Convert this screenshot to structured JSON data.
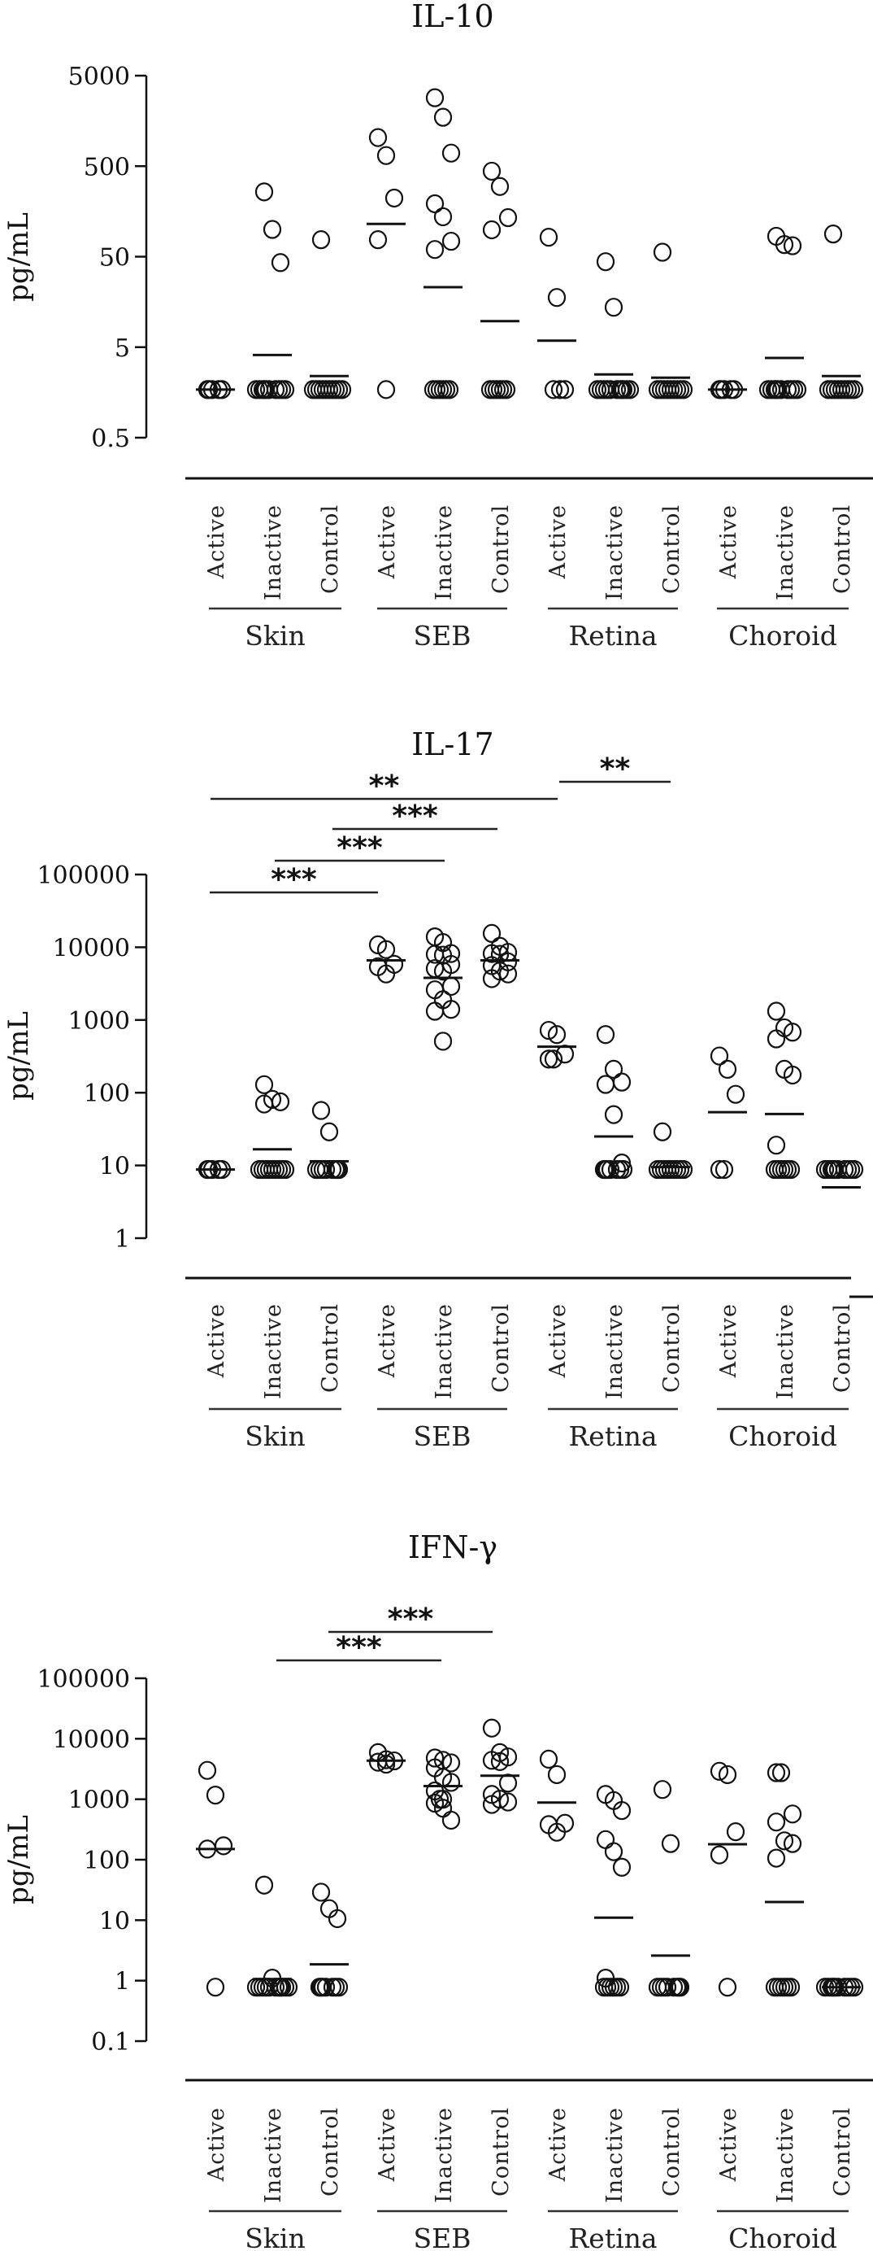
{
  "chart_data": [
    {
      "type": "scatter",
      "title": "IL-10",
      "ylabel": "pg/mL",
      "yscale": "log",
      "ylim": [
        0.5,
        5000
      ],
      "yticks": [
        5000,
        500,
        50,
        5,
        0.5
      ],
      "ytick_labels": [
        "5000",
        "500",
        "50",
        "5",
        "0.5"
      ],
      "groups": [
        "Skin",
        "SEB",
        "Retina",
        "Choroid"
      ],
      "conditions": [
        "Active",
        "Inactive",
        "Control"
      ],
      "series": [
        {
          "group": "Skin",
          "condition": "Active",
          "values": [
            1.7,
            1.7,
            1.7,
            1.7,
            1.7
          ],
          "mean": 1.7
        },
        {
          "group": "Skin",
          "condition": "Inactive",
          "values": [
            260,
            100,
            43,
            1.7,
            1.7,
            1.7,
            1.7,
            1.7,
            1.7,
            1.7,
            1.7,
            1.7,
            1.7
          ],
          "mean": 4.1
        },
        {
          "group": "Skin",
          "condition": "Control",
          "values": [
            77,
            1.7,
            1.7,
            1.7,
            1.7,
            1.7,
            1.7,
            1.7,
            1.7,
            1.7,
            1.7
          ],
          "mean": 2.4
        },
        {
          "group": "SEB",
          "condition": "Active",
          "values": [
            1035,
            655,
            222,
            77,
            1.7
          ],
          "mean": 115
        },
        {
          "group": "SEB",
          "condition": "Inactive",
          "values": [
            2850,
            1735,
            697,
            192,
            138,
            74,
            60,
            1.7,
            1.7,
            1.7,
            1.7,
            1.7,
            1.7
          ],
          "mean": 23
        },
        {
          "group": "SEB",
          "condition": "Control",
          "values": [
            440,
            298,
            135,
            99,
            1.7,
            1.7,
            1.7,
            1.7,
            1.7,
            1.7
          ],
          "mean": 9.7
        },
        {
          "group": "Retina",
          "condition": "Active",
          "values": [
            82,
            17.7,
            1.7,
            1.7,
            1.7
          ],
          "mean": 5.9
        },
        {
          "group": "Retina",
          "condition": "Inactive",
          "values": [
            44,
            13.8,
            1.7,
            1.7,
            1.7,
            1.7,
            1.7,
            1.7,
            1.7,
            1.7,
            1.7,
            1.7,
            1.7
          ],
          "mean": 2.5
        },
        {
          "group": "Retina",
          "condition": "Control",
          "values": [
            56,
            1.7,
            1.7,
            1.7,
            1.7,
            1.7,
            1.7,
            1.7,
            1.7,
            1.7
          ],
          "mean": 2.3
        },
        {
          "group": "Choroid",
          "condition": "Active",
          "values": [
            1.7,
            1.7,
            1.7,
            1.7,
            1.7
          ],
          "mean": 1.7
        },
        {
          "group": "Choroid",
          "condition": "Inactive",
          "values": [
            84,
            68,
            66,
            1.7,
            1.7,
            1.7,
            1.7,
            1.7,
            1.7,
            1.7,
            1.7,
            1.7,
            1.7
          ],
          "mean": 3.8
        },
        {
          "group": "Choroid",
          "condition": "Control",
          "values": [
            89,
            1.7,
            1.7,
            1.7,
            1.7,
            1.7,
            1.7,
            1.7,
            1.7,
            1.7
          ],
          "mean": 2.4
        }
      ],
      "significance": []
    },
    {
      "type": "scatter",
      "title": "IL-17",
      "ylabel": "pg/mL",
      "yscale": "log",
      "ylim": [
        1,
        100000
      ],
      "yticks": [
        100000,
        10000,
        1000,
        100,
        10,
        1
      ],
      "ytick_labels": [
        "100000",
        "10000",
        "1000",
        "100",
        "10",
        "1"
      ],
      "groups": [
        "Skin",
        "SEB",
        "Retina",
        "Choroid"
      ],
      "conditions": [
        "Active",
        "Inactive",
        "Control"
      ],
      "series": [
        {
          "group": "Skin",
          "condition": "Active",
          "values": [
            8.8,
            8.8,
            8.8,
            8.8,
            8.8
          ],
          "mean": 8.8
        },
        {
          "group": "Skin",
          "condition": "Inactive",
          "values": [
            129,
            81,
            75,
            70,
            8.8,
            8.8,
            8.8,
            8.8,
            8.8,
            8.8,
            8.8,
            8.8,
            8.8
          ],
          "mean": 16.7
        },
        {
          "group": "Skin",
          "condition": "Control",
          "values": [
            57,
            29,
            8.8,
            8.8,
            8.8,
            8.8,
            8.8,
            8.8,
            8.8,
            8.8
          ],
          "mean": 11.4
        },
        {
          "group": "SEB",
          "condition": "Active",
          "values": [
            10800,
            9300,
            5830,
            5400,
            4300
          ],
          "mean": 6600
        },
        {
          "group": "SEB",
          "condition": "Inactive",
          "values": [
            13900,
            11600,
            8200,
            8000,
            7800,
            5800,
            5100,
            4700,
            2900,
            2600,
            1900,
            1400,
            1320,
            510
          ],
          "mean": 3800
        },
        {
          "group": "SEB",
          "condition": "Control",
          "values": [
            15500,
            10300,
            8500,
            8200,
            8000,
            6300,
            5600,
            4700,
            4300,
            3700
          ],
          "mean": 6600
        },
        {
          "group": "Retina",
          "condition": "Active",
          "values": [
            720,
            630,
            340,
            290,
            290
          ],
          "mean": 430
        },
        {
          "group": "Retina",
          "condition": "Inactive",
          "values": [
            630,
            210,
            140,
            130,
            50,
            10.8,
            8.8,
            8.8,
            8.8,
            8.8,
            8.8,
            8.8,
            8.8
          ],
          "mean": 25
        },
        {
          "group": "Retina",
          "condition": "Control",
          "values": [
            29,
            8.8,
            8.8,
            8.8,
            8.8,
            8.8,
            8.8,
            8.8,
            8.8,
            8.8
          ],
          "mean": 9.5
        },
        {
          "group": "Choroid",
          "condition": "Active",
          "values": [
            320,
            210,
            95,
            8.8,
            8.8
          ],
          "mean": 54
        },
        {
          "group": "Choroid",
          "condition": "Inactive",
          "values": [
            1320,
            780,
            680,
            550,
            210,
            175,
            19,
            8.8,
            8.8,
            8.8,
            8.8,
            8.8,
            8.8
          ],
          "mean": 51
        },
        {
          "group": "Choroid",
          "condition": "Control",
          "values": [
            8.8,
            8.8,
            8.8,
            8.8,
            8.8,
            8.8,
            8.8,
            8.8,
            8.8,
            8.8
          ],
          "mean": 5.0
        }
      ],
      "significance": [
        {
          "from": "Skin Active",
          "to": "SEB Active",
          "label": "***"
        },
        {
          "from": "Skin Inactive",
          "to": "SEB Inactive",
          "label": "***"
        },
        {
          "from": "Skin Control",
          "to": "SEB Control",
          "label": "***"
        },
        {
          "from": "Skin Active",
          "to": "Retina Active",
          "label": "**"
        },
        {
          "from": "Retina Active",
          "to": "Retina Inactive",
          "label": "**"
        }
      ]
    },
    {
      "type": "scatter",
      "title": "IFN-γ",
      "ylabel": "pg/mL",
      "yscale": "log",
      "ylim": [
        0.1,
        100000
      ],
      "yticks": [
        100000,
        10000,
        1000,
        100,
        10,
        1,
        0.1
      ],
      "ytick_labels": [
        "100000",
        "10000",
        "1000",
        "100",
        "10",
        "1",
        "0.1"
      ],
      "groups": [
        "Skin",
        "SEB",
        "Retina",
        "Choroid"
      ],
      "conditions": [
        "Active",
        "Inactive",
        "Control"
      ],
      "series": [
        {
          "group": "Skin",
          "condition": "Active",
          "values": [
            3000,
            1170,
            170,
            150,
            0.78
          ],
          "mean": 150
        },
        {
          "group": "Skin",
          "condition": "Inactive",
          "values": [
            38,
            1.1,
            0.78,
            0.78,
            0.78,
            0.78,
            0.78,
            0.78,
            0.78,
            0.78,
            0.78,
            0.78,
            0.78
          ],
          "mean": 1.06
        },
        {
          "group": "Skin",
          "condition": "Control",
          "values": [
            29,
            15.5,
            10.6,
            0.78,
            0.78,
            0.78,
            0.78,
            0.78,
            0.78,
            0.78
          ],
          "mean": 1.86
        },
        {
          "group": "SEB",
          "condition": "Active",
          "values": [
            5900,
            4500,
            4300,
            4100,
            3800
          ],
          "mean": 4350
        },
        {
          "group": "SEB",
          "condition": "Inactive",
          "values": [
            4800,
            4400,
            4000,
            3300,
            2300,
            1900,
            1370,
            1000,
            1000,
            860,
            710,
            450
          ],
          "mean": 1650
        },
        {
          "group": "SEB",
          "condition": "Control",
          "values": [
            15000,
            5900,
            5000,
            4400,
            4200,
            1850,
            1200,
            1000,
            900,
            820
          ],
          "mean": 2450
        },
        {
          "group": "Retina",
          "condition": "Active",
          "values": [
            4600,
            2550,
            400,
            380,
            285
          ],
          "mean": 880
        },
        {
          "group": "Retina",
          "condition": "Inactive",
          "values": [
            1200,
            950,
            650,
            215,
            136,
            75,
            1.1,
            0.78,
            0.78,
            0.78,
            0.78,
            0.78,
            0.78
          ],
          "mean": 11
        },
        {
          "group": "Retina",
          "condition": "Control",
          "values": [
            1450,
            185,
            0.78,
            0.78,
            0.78,
            0.78,
            0.78,
            0.78,
            0.78,
            0.78
          ],
          "mean": 2.6
        },
        {
          "group": "Choroid",
          "condition": "Active",
          "values": [
            2900,
            2550,
            290,
            120,
            0.78
          ],
          "mean": 180
        },
        {
          "group": "Choroid",
          "condition": "Inactive",
          "values": [
            2750,
            2750,
            570,
            420,
            205,
            185,
            106,
            0.78,
            0.78,
            0.78,
            0.78,
            0.78,
            0.78
          ],
          "mean": 20
        },
        {
          "group": "Choroid",
          "condition": "Control",
          "values": [
            0.78,
            0.78,
            0.78,
            0.78,
            0.78,
            0.78,
            0.78,
            0.78,
            0.78,
            0.78
          ],
          "mean": 0.78
        }
      ],
      "significance": [
        {
          "from": "Skin Inactive",
          "to": "SEB Inactive",
          "label": "***"
        },
        {
          "from": "Skin Control",
          "to": "SEB Control",
          "label": "***"
        }
      ]
    }
  ]
}
